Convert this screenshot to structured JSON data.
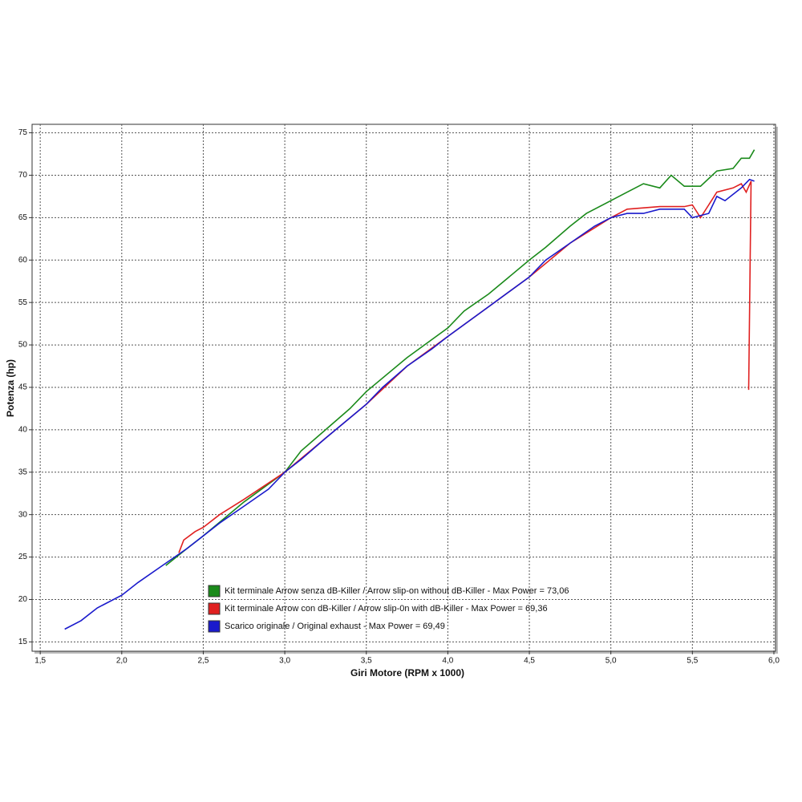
{
  "chart_data": {
    "type": "line",
    "x_label": "Giri Motore (RPM x 1000)",
    "y_label": "Potenza (hp)",
    "xlim": [
      1.45,
      6.01
    ],
    "ylim": [
      13.9,
      76.0
    ],
    "xticks": [
      {
        "value": 1.5,
        "label": "1,5"
      },
      {
        "value": 2.0,
        "label": "2,0"
      },
      {
        "value": 2.5,
        "label": "2,5"
      },
      {
        "value": 3.0,
        "label": "3,0"
      },
      {
        "value": 3.5,
        "label": "3,5"
      },
      {
        "value": 4.0,
        "label": "4,0"
      },
      {
        "value": 4.5,
        "label": "4,5"
      },
      {
        "value": 5.0,
        "label": "5,0"
      },
      {
        "value": 5.5,
        "label": "5,5"
      },
      {
        "value": 6.0,
        "label": "6,0"
      }
    ],
    "yticks": [
      15,
      20,
      25,
      30,
      35,
      40,
      45,
      50,
      55,
      60,
      65,
      70,
      75
    ],
    "grid": true,
    "series": [
      {
        "name": "Kit terminale Arrow senza dB-Killer / Arrow slip-on without dB-Killer - Max Power = 73,06",
        "color": "#1a8a1a",
        "x": [
          2.27,
          2.4,
          2.5,
          2.75,
          3.0,
          3.1,
          3.25,
          3.4,
          3.5,
          3.75,
          4.0,
          4.1,
          4.25,
          4.5,
          4.6,
          4.75,
          4.85,
          5.0,
          5.1,
          5.2,
          5.3,
          5.37,
          5.45,
          5.55,
          5.65,
          5.75,
          5.8,
          5.85,
          5.88
        ],
        "values": [
          24,
          26,
          27.5,
          31.5,
          35,
          37.5,
          40,
          42.5,
          44.5,
          48.5,
          52,
          54,
          56,
          60,
          61.5,
          64,
          65.5,
          67,
          68,
          69,
          68.5,
          70,
          68.7,
          68.7,
          70.5,
          70.8,
          72,
          72,
          73
        ]
      },
      {
        "name": "Kit terminale Arrow con dB-Killer / Arrow slip-0n with dB-Killer - Max Power = 69,36",
        "color": "#e02020",
        "x": [
          2.35,
          2.38,
          2.45,
          2.5,
          2.6,
          2.75,
          3.0,
          3.25,
          3.5,
          3.75,
          4.0,
          4.25,
          4.5,
          4.75,
          5.0,
          5.1,
          5.3,
          5.45,
          5.5,
          5.55,
          5.6,
          5.65,
          5.75,
          5.8,
          5.83,
          5.86,
          5.845
        ],
        "values": [
          25.5,
          27,
          28,
          28.5,
          30,
          31.8,
          35,
          39,
          43,
          47.5,
          51,
          54.5,
          58,
          62,
          65,
          66,
          66.3,
          66.3,
          66.5,
          65,
          66.5,
          68,
          68.5,
          69,
          68,
          69.3,
          44.7
        ]
      },
      {
        "name": "Scarico originale / Original exhaust - Max Power = 69,49",
        "color": "#1a1acc",
        "x": [
          1.65,
          1.75,
          1.85,
          2.0,
          2.1,
          2.25,
          2.4,
          2.5,
          2.6,
          2.75,
          2.9,
          3.0,
          3.1,
          3.25,
          3.5,
          3.6,
          3.75,
          3.9,
          4.0,
          4.25,
          4.5,
          4.6,
          4.75,
          4.9,
          5.0,
          5.1,
          5.2,
          5.3,
          5.45,
          5.5,
          5.6,
          5.65,
          5.7,
          5.8,
          5.85,
          5.88
        ],
        "values": [
          16.5,
          17.5,
          19,
          20.5,
          22,
          24,
          26,
          27.5,
          29,
          31,
          33,
          35,
          36.5,
          39,
          43,
          45,
          47.5,
          49.5,
          51,
          54.5,
          58,
          60,
          62,
          64,
          65,
          65.5,
          65.5,
          66,
          66,
          65,
          65.5,
          67.5,
          67,
          68.5,
          69.5,
          69.3
        ]
      }
    ]
  }
}
